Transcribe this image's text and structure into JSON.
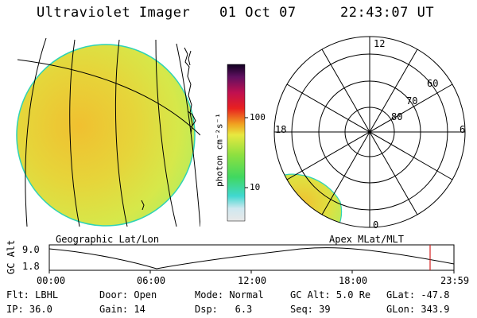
{
  "header": {
    "instrument": "Ultraviolet Imager",
    "date": "01 Oct 07",
    "time": "22:43:07 UT"
  },
  "colorbar": {
    "unit_label": "photon cm⁻²s⁻¹",
    "ticks": [
      "100",
      "10"
    ],
    "scale": "log"
  },
  "polar": {
    "mlt_labels": [
      "12",
      "18",
      "6",
      "0"
    ],
    "lat_labels": [
      "60",
      "70",
      "80"
    ]
  },
  "panels": {
    "geo_label": "Geographic Lat/Lon",
    "apex_label": "Apex MLat/MLT"
  },
  "altitude_plot": {
    "axis_label": "GC Alt",
    "y_ticks": [
      "9.0",
      "1.8"
    ],
    "x_ticks": [
      "00:00",
      "06:00",
      "12:00",
      "18:00",
      "23:59"
    ]
  },
  "info": {
    "row1": [
      {
        "label": "Flt:",
        "value": "LBHL"
      },
      {
        "label": "Door:",
        "value": "Open"
      },
      {
        "label": "Mode:",
        "value": "Normal"
      },
      {
        "label": "GC Alt:",
        "value": "5.0 Re"
      },
      {
        "label": "GLat:",
        "value": "-47.8"
      }
    ],
    "row2": [
      {
        "label": "IP:",
        "value": "36.0"
      },
      {
        "label": "Gain:",
        "value": "14"
      },
      {
        "label": "Dsp:",
        "value": "6.3"
      },
      {
        "label": "Seq:",
        "value": "39"
      },
      {
        "label": "GLon:",
        "value": "343.9"
      }
    ]
  },
  "colors": {
    "disk_fill": "#e3e44a",
    "disk_edge": "#2fd3b5",
    "cursor": "#d42020"
  }
}
